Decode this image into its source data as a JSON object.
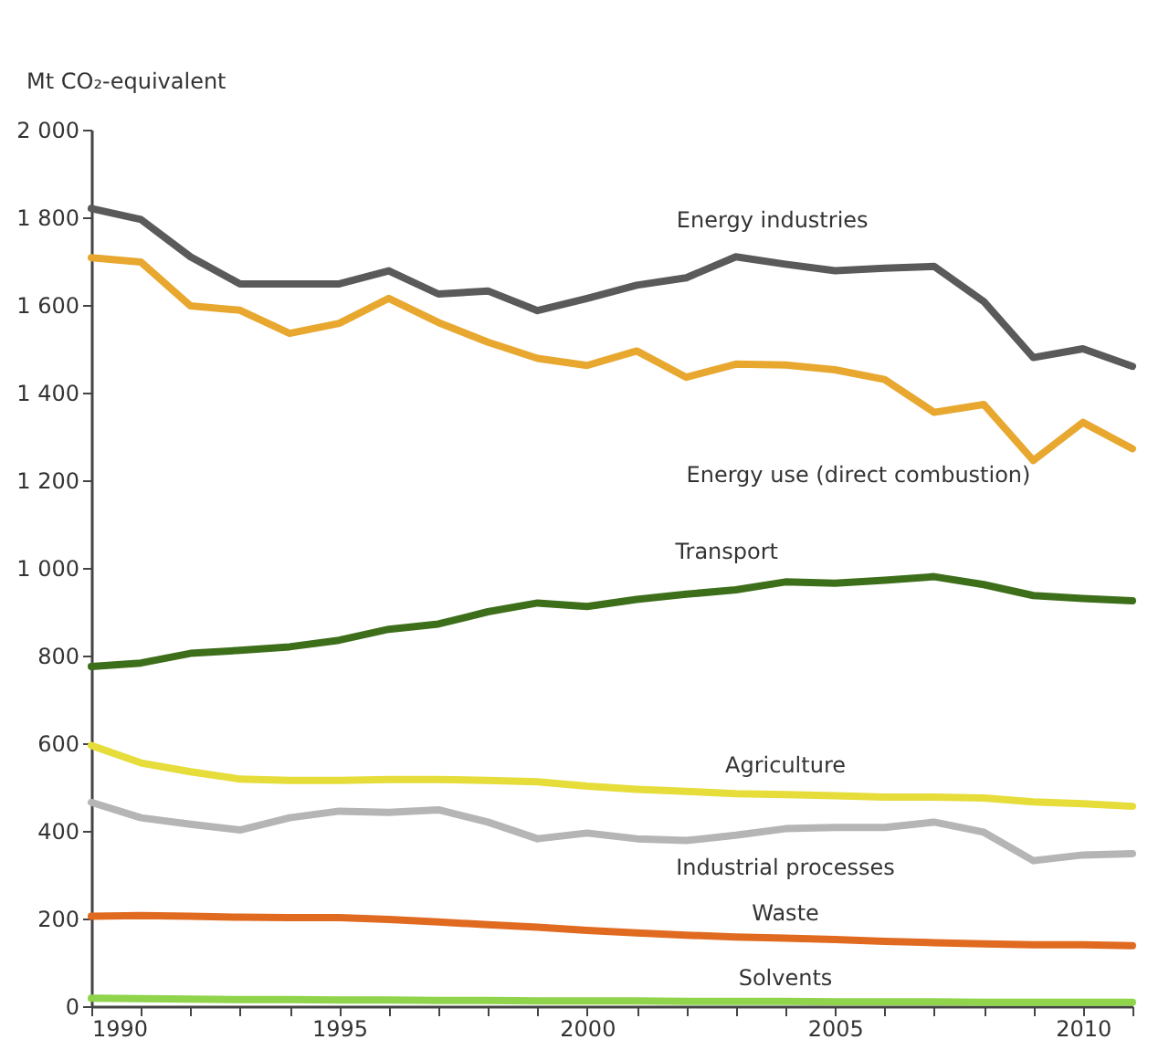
{
  "chart_data": {
    "type": "line",
    "ylabel": "Mt CO₂-equivalent",
    "x": [
      1990,
      1991,
      1992,
      1993,
      1994,
      1995,
      1996,
      1997,
      1998,
      1999,
      2000,
      2001,
      2002,
      2003,
      2004,
      2005,
      2006,
      2007,
      2008,
      2009,
      2010,
      2011
    ],
    "xlim": [
      1990,
      2011
    ],
    "xticks": [
      1990,
      {
        "value": 1991,
        "label": null
      },
      {
        "value": 1992,
        "label": null
      },
      {
        "value": 1993,
        "label": null
      },
      {
        "value": 1994,
        "label": null
      },
      1995,
      {
        "value": 1996,
        "label": null
      },
      {
        "value": 1997,
        "label": null
      },
      {
        "value": 1998,
        "label": null
      },
      {
        "value": 1999,
        "label": null
      },
      2000,
      {
        "value": 2001,
        "label": null
      },
      {
        "value": 2002,
        "label": null
      },
      {
        "value": 2003,
        "label": null
      },
      {
        "value": 2004,
        "label": null
      },
      2005,
      {
        "value": 2006,
        "label": null
      },
      {
        "value": 2007,
        "label": null
      },
      {
        "value": 2008,
        "label": null
      },
      {
        "value": 2009,
        "label": null
      },
      2010,
      {
        "value": 2011,
        "label": null
      }
    ],
    "ylim": [
      0,
      2000
    ],
    "yticks": [
      0,
      200,
      400,
      600,
      800,
      {
        "value": 1000,
        "label": "1 000"
      },
      {
        "value": 1200,
        "label": "1 200"
      },
      {
        "value": 1400,
        "label": "1 400"
      },
      {
        "value": 1600,
        "label": "1 600"
      },
      {
        "value": 1800,
        "label": "1 800"
      },
      {
        "value": 2000,
        "label": "2 000"
      }
    ],
    "grid": false,
    "marker": "none",
    "line_style": "solid",
    "series": [
      {
        "name": "Energy industries",
        "color": "#5a5a5a",
        "values": [
          1820,
          1795,
          1710,
          1648,
          1648,
          1648,
          1678,
          1625,
          1632,
          1587,
          1615,
          1645,
          1662,
          1710,
          1693,
          1678,
          1684,
          1688,
          1608,
          1480,
          1500,
          1460
        ]
      },
      {
        "name": "Energy use (direct combustion)",
        "color": "#e8a830",
        "values": [
          1708,
          1698,
          1598,
          1588,
          1535,
          1558,
          1615,
          1560,
          1515,
          1478,
          1462,
          1495,
          1435,
          1465,
          1463,
          1452,
          1430,
          1355,
          1373,
          1245,
          1332,
          1272
        ]
      },
      {
        "name": "Transport",
        "color": "#3d6e1a",
        "values": [
          775,
          783,
          805,
          812,
          820,
          835,
          860,
          872,
          900,
          920,
          912,
          928,
          940,
          950,
          968,
          965,
          972,
          980,
          962,
          937,
          930,
          925
        ]
      },
      {
        "name": "Agriculture",
        "color": "#e6dc3a",
        "values": [
          595,
          555,
          535,
          518,
          515,
          515,
          517,
          517,
          515,
          512,
          502,
          495,
          490,
          485,
          483,
          480,
          477,
          477,
          475,
          466,
          462,
          456
        ]
      },
      {
        "name": "Industrial processes",
        "color": "#b5b5b5",
        "values": [
          465,
          430,
          415,
          402,
          430,
          445,
          442,
          448,
          420,
          382,
          395,
          382,
          378,
          390,
          405,
          408,
          408,
          420,
          397,
          332,
          345,
          348
        ]
      },
      {
        "name": "Waste",
        "color": "#e06a20",
        "values": [
          205,
          207,
          205,
          203,
          202,
          202,
          198,
          192,
          186,
          180,
          173,
          167,
          162,
          158,
          155,
          152,
          148,
          145,
          142,
          140,
          140,
          138
        ]
      },
      {
        "name": "Solvents",
        "color": "#8fd44a",
        "values": [
          18,
          17,
          16,
          15,
          15,
          14,
          14,
          13,
          13,
          12,
          12,
          12,
          11,
          11,
          11,
          10,
          10,
          10,
          9,
          9,
          9,
          9
        ]
      }
    ]
  }
}
